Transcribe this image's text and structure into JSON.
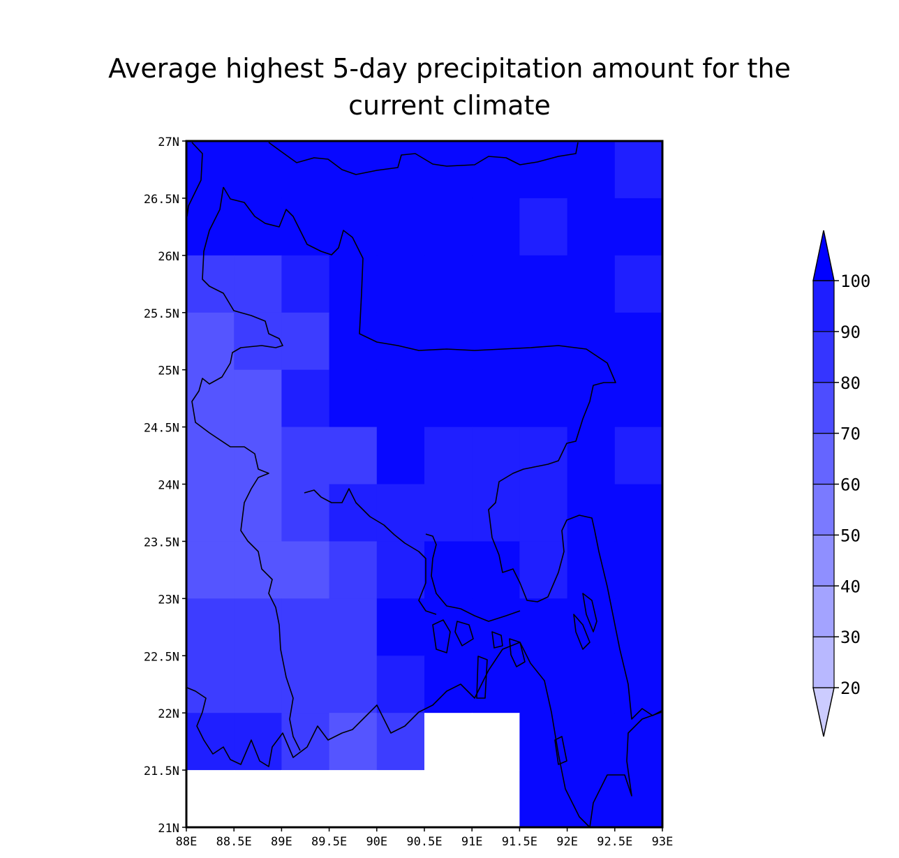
{
  "title_line1": "Average highest 5-day precipitation amount for the",
  "title_line2": "current climate",
  "chart_data": {
    "type": "heatmap",
    "title": "Average highest 5-day precipitation amount for the current climate",
    "xlabel": "",
    "ylabel": "",
    "xlim": [
      88,
      93
    ],
    "ylim": [
      21,
      27
    ],
    "x_ticks": [
      "88E",
      "88.5E",
      "89E",
      "89.5E",
      "90E",
      "90.5E",
      "91E",
      "91.5E",
      "92E",
      "92.5E",
      "93E"
    ],
    "y_ticks": [
      "21N",
      "21.5N",
      "22N",
      "22.5N",
      "23N",
      "23.5N",
      "24N",
      "24.5N",
      "25N",
      "25.5N",
      "26N",
      "26.5N",
      "27N"
    ],
    "grid_lon_centers": [
      88.25,
      88.75,
      89.25,
      89.75,
      90.25,
      90.75,
      91.25,
      91.75,
      92.25,
      92.75
    ],
    "grid_lat_centers": [
      26.75,
      26.25,
      25.75,
      25.25,
      24.75,
      24.25,
      23.75,
      23.25,
      22.75,
      22.25,
      21.75,
      21.25
    ],
    "values_note_units": "colorbar class index: 20,30,...,100 (class lower bound); 100 = >100",
    "values": [
      [
        100,
        100,
        100,
        100,
        100,
        100,
        100,
        100,
        100,
        90
      ],
      [
        100,
        100,
        100,
        100,
        100,
        100,
        100,
        90,
        100,
        100
      ],
      [
        80,
        80,
        90,
        100,
        100,
        100,
        100,
        100,
        100,
        90
      ],
      [
        70,
        80,
        80,
        100,
        100,
        100,
        100,
        100,
        100,
        100
      ],
      [
        70,
        70,
        90,
        100,
        100,
        100,
        100,
        100,
        100,
        100
      ],
      [
        70,
        70,
        80,
        80,
        100,
        90,
        90,
        90,
        100,
        90
      ],
      [
        70,
        70,
        80,
        90,
        90,
        90,
        90,
        90,
        100,
        100
      ],
      [
        70,
        70,
        70,
        80,
        90,
        100,
        100,
        90,
        100,
        100
      ],
      [
        80,
        80,
        80,
        80,
        100,
        100,
        100,
        100,
        100,
        100
      ],
      [
        80,
        80,
        80,
        80,
        90,
        100,
        100,
        100,
        100,
        100
      ],
      [
        90,
        90,
        80,
        70,
        80,
        null,
        null,
        100,
        100,
        100
      ],
      [
        null,
        null,
        null,
        null,
        null,
        null,
        null,
        100,
        100,
        100
      ]
    ],
    "colorbar": {
      "labels": [
        "20",
        "30",
        "40",
        "50",
        "60",
        "70",
        "80",
        "90",
        "100"
      ],
      "colors": [
        "#ccccff",
        "#b8b8ff",
        "#a3a3ff",
        "#8f8fff",
        "#7a7aff",
        "#6565ff",
        "#4d4dff",
        "#3535ff",
        "#1e1eff",
        "#0000ff"
      ],
      "extend": "both"
    },
    "class_colors": {
      "70": "#5555ff",
      "80": "#3d3dff",
      "90": "#1f1fff",
      "100": "#0808ff"
    },
    "missing_color": "#ffffff",
    "overlay": "coastline and borders outline",
    "grid": false
  }
}
